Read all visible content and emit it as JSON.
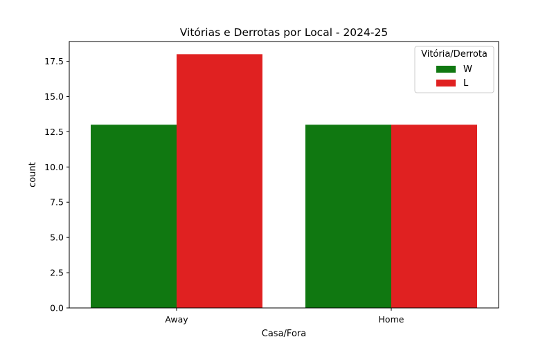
{
  "chart_data": {
    "type": "bar",
    "title": "Vitórias e Derrotas por Local - 2024-25",
    "xlabel": "Casa/Fora",
    "ylabel": "count",
    "categories": [
      "Away",
      "Home"
    ],
    "series": [
      {
        "name": "W",
        "values": [
          13,
          13
        ],
        "color": "#107811"
      },
      {
        "name": "L",
        "values": [
          18,
          13
        ],
        "color": "#e02121"
      }
    ],
    "ylim": [
      0,
      18.9
    ],
    "yticks": [
      "0.0",
      "2.5",
      "5.0",
      "7.5",
      "10.0",
      "12.5",
      "15.0",
      "17.5"
    ],
    "ytick_values": [
      0,
      2.5,
      5,
      7.5,
      10,
      12.5,
      15,
      17.5
    ],
    "legend": {
      "title": "Vitória/Derrota",
      "placement": "top-right"
    },
    "grid": false
  }
}
